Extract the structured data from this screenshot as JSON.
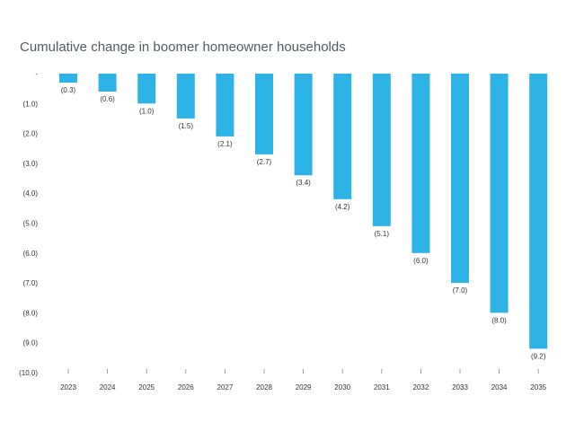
{
  "chart_data": {
    "type": "bar",
    "title": "Cumulative change in boomer homeowner households",
    "xlabel": "",
    "ylabel": "",
    "categories": [
      "2023",
      "2024",
      "2025",
      "2026",
      "2027",
      "2028",
      "2029",
      "2030",
      "2031",
      "2032",
      "2033",
      "2034",
      "2035"
    ],
    "values": [
      -0.3,
      -0.6,
      -1.0,
      -1.5,
      -2.1,
      -2.7,
      -3.4,
      -4.2,
      -5.1,
      -6.0,
      -7.0,
      -8.0,
      -9.2
    ],
    "data_labels": [
      "(0.3)",
      "(0.6)",
      "(1.0)",
      "(1.5)",
      "(2.1)",
      "(2.7)",
      "(3.4)",
      "(4.2)",
      "(5.1)",
      "(6.0)",
      "(7.0)",
      "(8.0)",
      "(9.2)"
    ],
    "ylim": [
      -10,
      0
    ],
    "y_ticks": [
      0,
      -1,
      -2,
      -3,
      -4,
      -5,
      -6,
      -7,
      -8,
      -9,
      -10
    ],
    "y_tick_labels": [
      "-",
      "(1.0)",
      "(2.0)",
      "(3.0)",
      "(4.0)",
      "(5.0)",
      "(6.0)",
      "(7.0)",
      "(8.0)",
      "(9.0)",
      "(10.0)"
    ],
    "grid": false,
    "colors": {
      "bar": "#2db3e6",
      "text": "#333333",
      "title": "#555a60",
      "axis_tick": "#888888"
    }
  }
}
